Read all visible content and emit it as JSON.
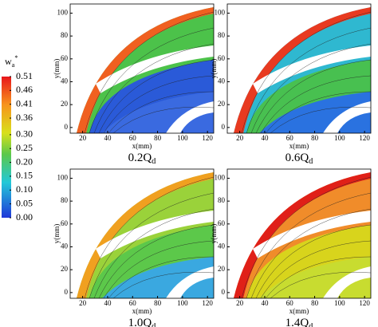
{
  "chart_data": [
    {
      "type": "contour",
      "caption": "0.2Q",
      "caption_sub": "d",
      "x_label": "x(mm)",
      "y_label": "y(mm)",
      "xlim": [
        10,
        125
      ],
      "ylim": [
        -5,
        108
      ],
      "xticks": [
        20,
        40,
        60,
        80,
        100,
        120
      ],
      "yticks": [
        0,
        20,
        40,
        60,
        80,
        100
      ],
      "colorbar": {
        "label": "w",
        "label_sub": "a",
        "label_sup": "*",
        "lim": [
          0,
          0.51
        ],
        "ticks": [
          {
            "value": 0.51,
            "label": "0.51"
          },
          {
            "value": 0.46,
            "label": "0.46"
          },
          {
            "value": 0.41,
            "label": "0.41"
          },
          {
            "value": 0.36,
            "label": "0.36"
          },
          {
            "value": 0.3,
            "label": "0.30"
          },
          {
            "value": 0.25,
            "label": "0.25"
          },
          {
            "value": 0.2,
            "label": "0.20"
          },
          {
            "value": 0.15,
            "label": "0.15"
          },
          {
            "value": 0.1,
            "label": "0.10"
          },
          {
            "value": 0.05,
            "label": "0.05"
          },
          {
            "value": 0.0,
            "label": "0.00"
          }
        ]
      }
    },
    {
      "type": "contour",
      "caption": "0.6Q",
      "caption_sub": "d",
      "x_label": "x(mm)",
      "y_label": "y(mm)",
      "xlim": [
        10,
        125
      ],
      "ylim": [
        -5,
        108
      ],
      "xticks": [
        20,
        40,
        60,
        80,
        100,
        120
      ],
      "yticks": [
        0,
        20,
        40,
        60,
        80,
        100
      ]
    },
    {
      "type": "contour",
      "caption": "1.0Q",
      "caption_sub": "d",
      "x_label": "x(mm)",
      "y_label": "y(mm)",
      "xlim": [
        10,
        125
      ],
      "ylim": [
        -5,
        108
      ],
      "xticks": [
        20,
        40,
        60,
        80,
        100,
        120
      ],
      "yticks": [
        0,
        20,
        40,
        60,
        80,
        100
      ]
    },
    {
      "type": "contour",
      "caption": "1.4Q",
      "caption_sub": "d",
      "x_label": "x(mm)",
      "y_label": "y(mm)",
      "xlim": [
        10,
        125
      ],
      "ylim": [
        -5,
        108
      ],
      "xticks": [
        20,
        40,
        60,
        80,
        100,
        120
      ],
      "yticks": [
        0,
        20,
        40,
        60,
        80,
        100
      ]
    }
  ]
}
